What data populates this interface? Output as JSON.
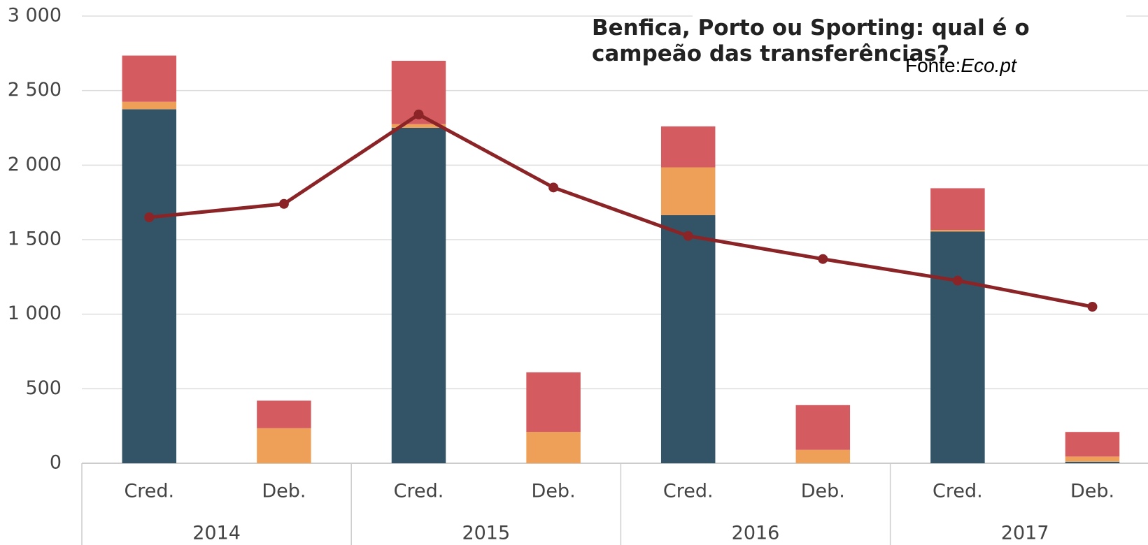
{
  "chart_data": {
    "type": "stacked_bar_line",
    "title": "Benfica, Porto ou Sporting: qual é o campeão das transferências?",
    "source_label": "Fonte:",
    "source": "Eco.pt",
    "categories": [
      "Cred.",
      "Deb.",
      "Cred.",
      "Deb.",
      "Cred.",
      "Deb.",
      "Cred.",
      "Deb."
    ],
    "groups": [
      "2014",
      "2015",
      "2016",
      "2017"
    ],
    "series": [
      {
        "color": "#325466",
        "values": [
          2375,
          0,
          2250,
          0,
          1665,
          0,
          1555,
          10
        ]
      },
      {
        "color": "#efa058",
        "values": [
          50,
          235,
          25,
          210,
          320,
          90,
          10,
          35
        ]
      },
      {
        "color": "#d45b60",
        "values": [
          310,
          185,
          425,
          400,
          275,
          300,
          280,
          165
        ]
      },
      {
        "type": "line",
        "color": "#8b2427",
        "values": [
          1650,
          1740,
          2340,
          1850,
          1525,
          1370,
          1225,
          1050
        ]
      }
    ],
    "ylim": [
      0,
      3000
    ],
    "yticks": [
      0,
      500,
      {
        "value": 1000,
        "label": "1 000"
      },
      {
        "value": 1500,
        "label": "1 500"
      },
      {
        "value": 2000,
        "label": "2 000"
      },
      {
        "value": 2500,
        "label": "2 500"
      },
      {
        "value": 3000,
        "label": "3 000"
      }
    ],
    "grid": true
  }
}
